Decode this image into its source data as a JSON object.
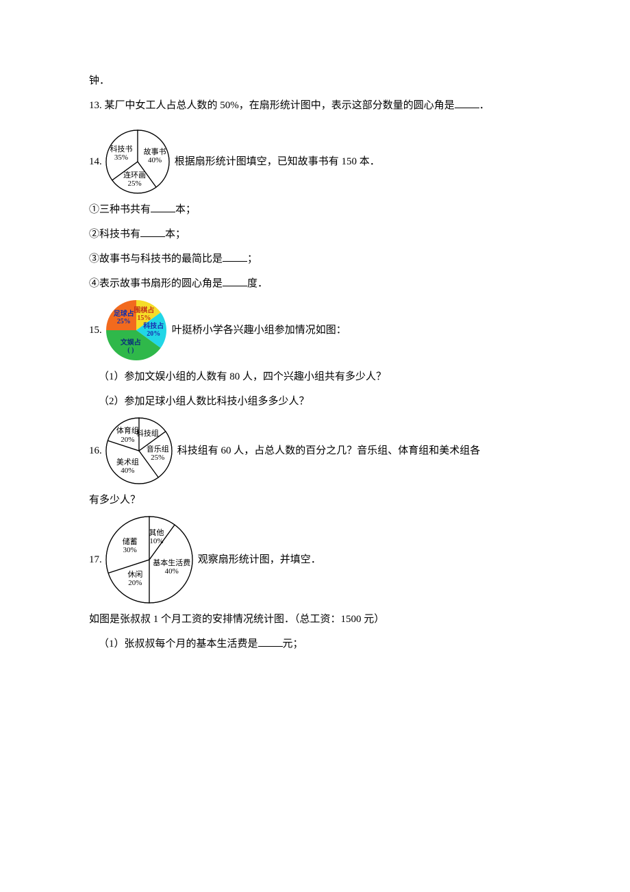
{
  "line_top": "钟．",
  "q13": "13. 某厂中女工人占总人数的 50%，在扇形统计图中，表示这部分数量的圆心角是",
  "q13_end": "．",
  "q14_num": "14.",
  "q14_text": "根据扇形统计图填空，已知故事书有 150 本．",
  "q14_sub1_a": "①三种书共有",
  "q14_sub1_b": "本；",
  "q14_sub2_a": "②科技书有",
  "q14_sub2_b": "本；",
  "q14_sub3_a": "③故事书与科技书的最简比是",
  "q14_sub3_b": "；",
  "q14_sub4_a": "④表示故事书扇形的圆心角是",
  "q14_sub4_b": "度．",
  "q15_num": "15.",
  "q15_text": "叶挺桥小学各兴趣小组参加情况如图：",
  "q15_sub1": "（1）参加文娱小组的人数有 80 人，四个兴趣小组共有多少人？",
  "q15_sub2": "（2）参加足球小组人数比科技小组多多少人？",
  "q16_num": "16.",
  "q16_text": "科技组有 60 人，占总人数的百分之几？音乐组、体育组和美术组各",
  "q16_tail": "有多少人？",
  "q17_num": "17.",
  "q17_text": "观察扇形统计图，并填空．",
  "q17_caption": "如图是张叔叔 1 个月工资的安排情况统计图．（总工资：1500 元）",
  "q17_sub1_a": "（1）张叔叔每个月的基本生活费是",
  "q17_sub1_b": "元；",
  "pie14": {
    "type": "pie",
    "size": 96,
    "stroke": "#000000",
    "bg": "#ffffff",
    "slices": [
      {
        "label": "故事书",
        "pct": "40%",
        "start": -90,
        "end": 54
      },
      {
        "label": "连环画",
        "pct": "25%",
        "start": 54,
        "end": 144
      },
      {
        "label": "科技书",
        "pct": "35%",
        "start": 144,
        "end": 270
      }
    ]
  },
  "pie15": {
    "type": "pie",
    "size": 92,
    "slices": [
      {
        "label": "围棋占",
        "pct": "15%",
        "color": "#f5dd28",
        "start": -90,
        "end": -36
      },
      {
        "label": "科技占",
        "pct": "20%",
        "color": "#21d6e6",
        "start": -36,
        "end": 36
      },
      {
        "label": "文娱占",
        "pct": "( )",
        "color": "#2fb84a",
        "start": 36,
        "end": 180
      },
      {
        "label": "足球占",
        "pct": "25%",
        "color": "#f26a1e",
        "start": 180,
        "end": 270
      }
    ],
    "label_colors": {
      "围棋": "#c4301a",
      "科技": "#1a2fb0",
      "文娱": "#0a2f7a",
      "足球": "#0a2fb0"
    }
  },
  "pie16": {
    "type": "pie",
    "size": 100,
    "stroke": "#000000",
    "bg": "#ffffff",
    "slices": [
      {
        "label": "科技组",
        "pct": "",
        "start": -90,
        "end": -36
      },
      {
        "label": "音乐组",
        "pct": "25%",
        "start": -36,
        "end": 54
      },
      {
        "label": "美术组",
        "pct": "40%",
        "start": 54,
        "end": 198
      },
      {
        "label": "体育组",
        "pct": "20%",
        "start": 198,
        "end": 270
      }
    ]
  },
  "pie17": {
    "type": "pie",
    "size": 130,
    "stroke": "#000000",
    "bg": "#ffffff",
    "slices": [
      {
        "label": "其他",
        "pct": "10%",
        "start": -90,
        "end": -54
      },
      {
        "label": "基本生活费",
        "pct": "40%",
        "start": -54,
        "end": 90
      },
      {
        "label": "休闲",
        "pct": "20%",
        "start": 90,
        "end": 162
      },
      {
        "label": "储蓄",
        "pct": "30%",
        "start": 162,
        "end": 270
      }
    ]
  }
}
